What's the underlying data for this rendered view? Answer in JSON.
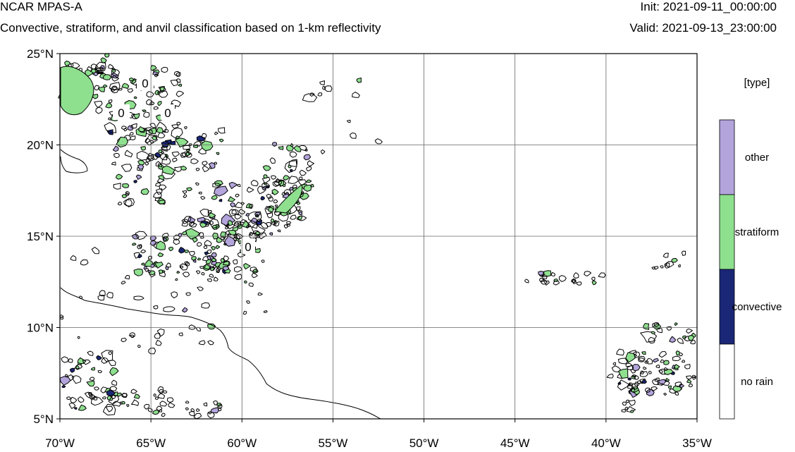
{
  "header": {
    "title": "NCAR MPAS-A",
    "subtitle": "Convective, stratiform, and anvil classification based on 1-km reflectivity",
    "init": "Init: 2021-09-11_00:00:00",
    "valid": "Valid: 2021-09-13_23:00:00"
  },
  "map": {
    "lat_labels": [
      "25°N",
      "20°N",
      "15°N",
      "10°N",
      "5°N"
    ],
    "lon_labels": [
      "70°W",
      "65°W",
      "60°W",
      "55°W",
      "50°W",
      "45°W",
      "40°W",
      "35°W"
    ],
    "contour_labels": [
      "0",
      "0",
      "0",
      "0"
    ],
    "extent": {
      "lon_min": -70,
      "lon_max": -35,
      "lat_min": 5,
      "lat_max": 25
    }
  },
  "legend": {
    "title": "[type]",
    "entries": [
      {
        "label": "other",
        "color": "#b3a4dc"
      },
      {
        "label": "stratiform",
        "color": "#8ee08e"
      },
      {
        "label": "convective",
        "color": "#1a2777"
      },
      {
        "label": "no rain",
        "color": "#ffffff"
      }
    ]
  }
}
